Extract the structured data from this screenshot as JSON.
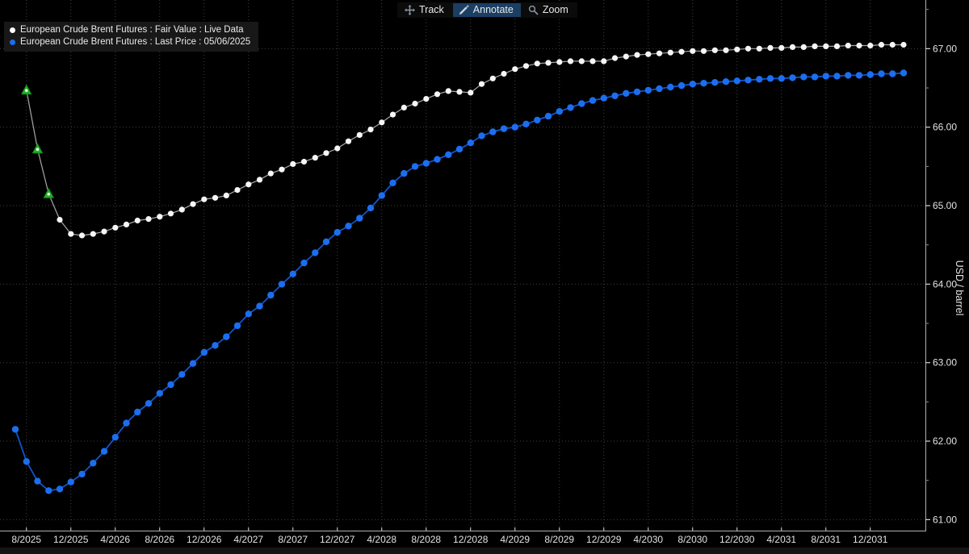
{
  "toolbar": {
    "items": [
      {
        "label": "Track",
        "icon": "track-move-icon",
        "active": false
      },
      {
        "label": "Annotate",
        "icon": "pencil-icon",
        "active": true
      },
      {
        "label": "Zoom",
        "icon": "magnifier-icon",
        "active": false
      }
    ],
    "active_bg": "#1b3e63"
  },
  "legend": {
    "items": [
      {
        "label": "European Crude Brent Futures : Fair Value : Live Data",
        "marker_color": "#ffffff"
      },
      {
        "label": "European Crude Brent Futures : Last Price : 05/06/2025",
        "marker_color": "#1b6ef0"
      }
    ]
  },
  "chart_data": {
    "type": "line",
    "title": "",
    "xlabel": "",
    "ylabel": "USD / barrel",
    "ylim": [
      60.86,
      67.62
    ],
    "y_ticks": [
      "61.00",
      "62.00",
      "63.00",
      "64.00",
      "65.00",
      "66.00",
      "67.00"
    ],
    "y_minor_step": 0.5,
    "x_ticks": [
      "8/2025",
      "12/2025",
      "4/2026",
      "8/2026",
      "12/2026",
      "4/2027",
      "8/2027",
      "12/2027",
      "4/2028",
      "8/2028",
      "12/2028",
      "4/2029",
      "8/2029",
      "12/2029",
      "4/2030",
      "8/2030",
      "12/2030",
      "4/2031",
      "8/2031",
      "12/2031"
    ],
    "x_unit": "month",
    "x_start": "7/2025",
    "x_end": "3/2032",
    "grid": "dotted",
    "legend_position": "top-left",
    "background": "#000000",
    "series": [
      {
        "name": "European Crude Brent Futures : Fair Value : Live Data",
        "marker": "circle",
        "marker_color": "#f6f6f6",
        "line_color": "#a8a8a8",
        "start_offset_months": 1,
        "values": [
          66.47,
          65.72,
          65.15,
          64.82,
          64.64,
          64.62,
          64.64,
          64.67,
          64.72,
          64.76,
          64.81,
          64.83,
          64.86,
          64.9,
          64.95,
          65.02,
          65.08,
          65.1,
          65.13,
          65.2,
          65.27,
          65.33,
          65.41,
          65.46,
          65.53,
          65.56,
          65.61,
          65.67,
          65.73,
          65.82,
          65.9,
          65.97,
          66.06,
          66.16,
          66.25,
          66.3,
          66.36,
          66.42,
          66.46,
          66.45,
          66.44,
          66.55,
          66.62,
          66.68,
          66.74,
          66.78,
          66.81,
          66.82,
          66.83,
          66.84,
          66.84,
          66.84,
          66.84,
          66.88,
          66.9,
          66.92,
          66.93,
          66.94,
          66.95,
          66.96,
          66.97,
          66.97,
          66.98,
          66.98,
          66.99,
          67.0,
          67.0,
          67.01,
          67.01,
          67.02,
          67.02,
          67.03,
          67.03,
          67.03,
          67.04,
          67.04,
          67.04,
          67.05,
          67.05,
          67.05
        ]
      },
      {
        "name": "European Crude Brent Futures : Last Price : 05/06/2025",
        "marker": "circle",
        "marker_color": "#1b6ef0",
        "line_color": "#1254c8",
        "start_offset_months": 0,
        "values": [
          62.15,
          61.74,
          61.49,
          61.37,
          61.39,
          61.48,
          61.58,
          61.72,
          61.87,
          62.05,
          62.23,
          62.37,
          62.48,
          62.61,
          62.72,
          62.85,
          62.99,
          63.13,
          63.22,
          63.33,
          63.47,
          63.62,
          63.72,
          63.86,
          64.0,
          64.13,
          64.27,
          64.4,
          64.54,
          64.66,
          64.74,
          64.84,
          64.97,
          65.13,
          65.29,
          65.41,
          65.5,
          65.54,
          65.59,
          65.65,
          65.72,
          65.8,
          65.89,
          65.94,
          65.98,
          66.0,
          66.04,
          66.09,
          66.14,
          66.2,
          66.25,
          66.3,
          66.34,
          66.37,
          66.4,
          66.43,
          66.45,
          66.47,
          66.49,
          66.51,
          66.53,
          66.55,
          66.56,
          66.57,
          66.58,
          66.59,
          66.6,
          66.61,
          66.62,
          66.62,
          66.63,
          66.64,
          66.64,
          66.65,
          66.65,
          66.66,
          66.66,
          66.67,
          66.68,
          66.68,
          66.69
        ]
      }
    ],
    "highlight_markers": {
      "series_index": 0,
      "point_indices": [
        0,
        1,
        2
      ],
      "shape": "triangle-up",
      "fill": "#25b325",
      "stroke": "#0e8a1e",
      "center_dot_color": "#ffffff"
    }
  }
}
